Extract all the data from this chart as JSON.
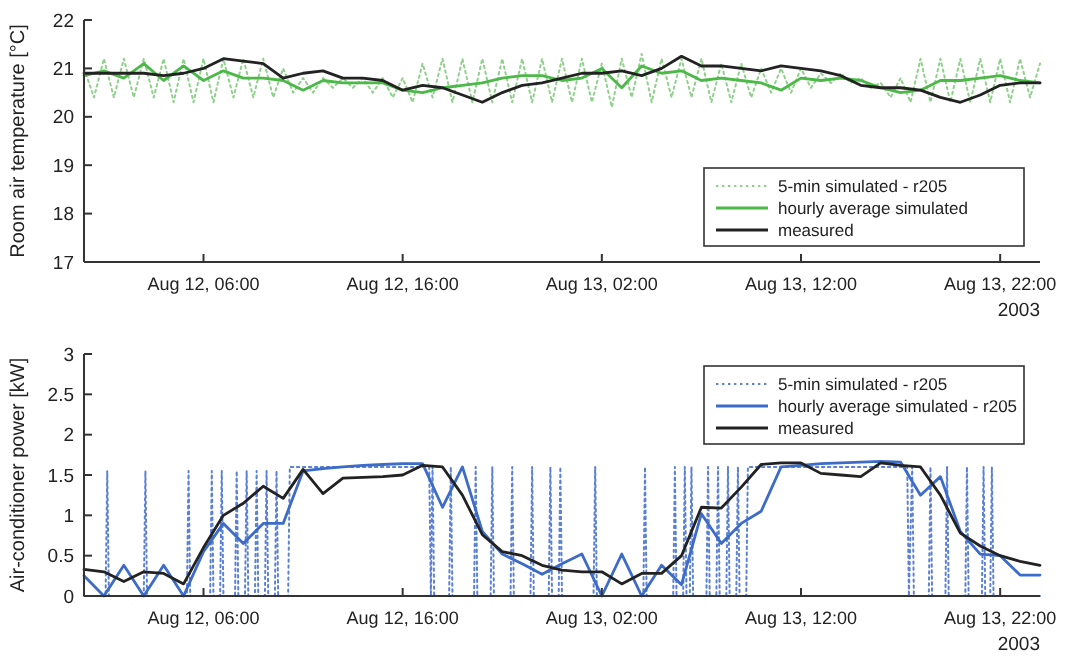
{
  "chart_data": [
    {
      "type": "line",
      "ylabel": "Room air temperature [°C]",
      "xlim": [
        "2003-08-12T00:00",
        "2003-08-14T00:00"
      ],
      "ylim": [
        17,
        22
      ],
      "yticks": [
        17,
        18,
        19,
        20,
        21,
        22
      ],
      "xticks": [
        {
          "value": "2003-08-12T06:00",
          "label": "Aug 12, 06:00"
        },
        {
          "value": "2003-08-12T16:00",
          "label": "Aug 12, 16:00"
        },
        {
          "value": "2003-08-13T02:00",
          "label": "Aug 13, 02:00"
        },
        {
          "value": "2003-08-13T12:00",
          "label": "Aug 13, 12:00"
        },
        {
          "value": "2003-08-13T22:00",
          "label": "Aug 13, 22:00"
        }
      ],
      "x": [
        "2003-08-12T00:00",
        "2003-08-12T01:00",
        "2003-08-12T02:00",
        "2003-08-12T03:00",
        "2003-08-12T04:00",
        "2003-08-12T05:00",
        "2003-08-12T06:00",
        "2003-08-12T07:00",
        "2003-08-12T08:00",
        "2003-08-12T09:00",
        "2003-08-12T10:00",
        "2003-08-12T11:00",
        "2003-08-12T12:00",
        "2003-08-12T13:00",
        "2003-08-12T14:00",
        "2003-08-12T15:00",
        "2003-08-12T16:00",
        "2003-08-12T17:00",
        "2003-08-12T18:00",
        "2003-08-12T19:00",
        "2003-08-12T20:00",
        "2003-08-12T21:00",
        "2003-08-12T22:00",
        "2003-08-12T23:00",
        "2003-08-13T00:00",
        "2003-08-13T01:00",
        "2003-08-13T02:00",
        "2003-08-13T03:00",
        "2003-08-13T04:00",
        "2003-08-13T05:00",
        "2003-08-13T06:00",
        "2003-08-13T07:00",
        "2003-08-13T08:00",
        "2003-08-13T09:00",
        "2003-08-13T10:00",
        "2003-08-13T11:00",
        "2003-08-13T12:00",
        "2003-08-13T13:00",
        "2003-08-13T14:00",
        "2003-08-13T15:00",
        "2003-08-13T16:00",
        "2003-08-13T17:00",
        "2003-08-13T18:00",
        "2003-08-13T19:00",
        "2003-08-13T20:00",
        "2003-08-13T21:00",
        "2003-08-13T22:00",
        "2003-08-13T23:00",
        "2003-08-14T00:00"
      ],
      "legend": "bottom right",
      "grid": false,
      "annotations": [
        "2003"
      ],
      "series": [
        {
          "name": "5-min simulated - r205",
          "color": "#8fd18a",
          "line_style": "dotted",
          "x": [
            "2003-08-12T00:00",
            "2003-08-12T00:30",
            "2003-08-12T01:00",
            "2003-08-12T01:30",
            "2003-08-12T02:00",
            "2003-08-12T02:30",
            "2003-08-12T03:00",
            "2003-08-12T03:30",
            "2003-08-12T04:00",
            "2003-08-12T04:30",
            "2003-08-12T05:00",
            "2003-08-12T05:30",
            "2003-08-12T06:00",
            "2003-08-12T06:30",
            "2003-08-12T07:00",
            "2003-08-12T07:30",
            "2003-08-12T08:00",
            "2003-08-12T08:30",
            "2003-08-12T09:00",
            "2003-08-12T09:30",
            "2003-08-12T10:00",
            "2003-08-12T10:30",
            "2003-08-12T11:00",
            "2003-08-12T11:30",
            "2003-08-12T12:00",
            "2003-08-12T12:30",
            "2003-08-12T13:00",
            "2003-08-12T13:30",
            "2003-08-12T14:00",
            "2003-08-12T14:30",
            "2003-08-12T15:00",
            "2003-08-12T15:30",
            "2003-08-12T16:00",
            "2003-08-12T16:30",
            "2003-08-12T17:00",
            "2003-08-12T17:30",
            "2003-08-12T18:00",
            "2003-08-12T18:30",
            "2003-08-12T19:00",
            "2003-08-12T19:30",
            "2003-08-12T20:00",
            "2003-08-12T20:30",
            "2003-08-12T21:00",
            "2003-08-12T21:30",
            "2003-08-12T22:00",
            "2003-08-12T22:30",
            "2003-08-12T23:00",
            "2003-08-12T23:30",
            "2003-08-13T00:00",
            "2003-08-13T00:30",
            "2003-08-13T01:00",
            "2003-08-13T01:30",
            "2003-08-13T02:00",
            "2003-08-13T02:30",
            "2003-08-13T03:00",
            "2003-08-13T03:30",
            "2003-08-13T04:00",
            "2003-08-13T04:30",
            "2003-08-13T05:00",
            "2003-08-13T05:30",
            "2003-08-13T06:00",
            "2003-08-13T06:30",
            "2003-08-13T07:00",
            "2003-08-13T07:30",
            "2003-08-13T08:00",
            "2003-08-13T08:30",
            "2003-08-13T09:00",
            "2003-08-13T09:30",
            "2003-08-13T10:00",
            "2003-08-13T10:30",
            "2003-08-13T11:00",
            "2003-08-13T11:30",
            "2003-08-13T12:00",
            "2003-08-13T12:30",
            "2003-08-13T13:00",
            "2003-08-13T13:30",
            "2003-08-13T14:00",
            "2003-08-13T14:30",
            "2003-08-13T15:00",
            "2003-08-13T15:30",
            "2003-08-13T16:00",
            "2003-08-13T16:30",
            "2003-08-13T17:00",
            "2003-08-13T17:30",
            "2003-08-13T18:00",
            "2003-08-13T18:30",
            "2003-08-13T19:00",
            "2003-08-13T19:30",
            "2003-08-13T20:00",
            "2003-08-13T20:30",
            "2003-08-13T21:00",
            "2003-08-13T21:30",
            "2003-08-13T22:00",
            "2003-08-13T22:30",
            "2003-08-13T23:00",
            "2003-08-13T23:30",
            "2003-08-14T00:00"
          ],
          "values": [
            21.0,
            20.4,
            21.2,
            20.4,
            21.2,
            20.4,
            21.2,
            20.4,
            21.2,
            20.3,
            21.2,
            20.3,
            21.2,
            20.3,
            21.2,
            20.4,
            21.2,
            20.4,
            21.2,
            20.4,
            21.0,
            20.5,
            20.8,
            20.5,
            20.8,
            20.6,
            20.8,
            20.6,
            20.8,
            20.5,
            20.8,
            20.4,
            20.8,
            20.3,
            21.1,
            20.4,
            21.2,
            20.3,
            21.2,
            20.3,
            21.2,
            20.3,
            21.2,
            20.3,
            21.2,
            20.3,
            21.2,
            20.3,
            21.2,
            20.3,
            21.2,
            20.3,
            21.1,
            20.2,
            21.2,
            20.4,
            21.3,
            20.3,
            21.2,
            20.4,
            21.2,
            20.4,
            21.2,
            20.3,
            21.1,
            20.3,
            21.1,
            20.4,
            21.0,
            20.5,
            21.0,
            20.5,
            21.0,
            20.6,
            20.9,
            20.7,
            20.9,
            20.7,
            20.8,
            20.6,
            20.7,
            20.4,
            20.8,
            20.3,
            21.2,
            20.3,
            21.2,
            20.3,
            21.2,
            20.3,
            21.2,
            20.3,
            21.2,
            20.3,
            21.2,
            20.4,
            21.1
          ]
        },
        {
          "name": "hourly average simulated",
          "color": "#4cb848",
          "line_style": "solid",
          "values": [
            20.85,
            20.95,
            20.8,
            21.1,
            20.75,
            21.05,
            20.75,
            20.95,
            20.8,
            20.8,
            20.75,
            20.55,
            20.75,
            20.7,
            20.7,
            20.7,
            20.55,
            20.5,
            20.6,
            20.65,
            20.7,
            20.8,
            20.85,
            20.85,
            20.75,
            20.8,
            21.0,
            20.6,
            21.05,
            20.9,
            20.95,
            20.75,
            20.8,
            20.75,
            20.7,
            20.55,
            20.8,
            20.75,
            20.8,
            20.75,
            20.6,
            20.5,
            20.55,
            20.75,
            20.75,
            20.8,
            20.85,
            20.75,
            20.7
          ]
        },
        {
          "name": "measured",
          "color": "#222222",
          "line_style": "solid",
          "values": [
            20.9,
            20.9,
            20.9,
            20.9,
            20.85,
            20.9,
            21.0,
            21.2,
            21.15,
            21.1,
            20.8,
            20.9,
            20.95,
            20.8,
            20.8,
            20.75,
            20.55,
            20.65,
            20.6,
            20.45,
            20.3,
            20.5,
            20.65,
            20.7,
            20.8,
            20.9,
            20.9,
            20.95,
            20.85,
            21.0,
            21.25,
            21.05,
            21.05,
            21.0,
            20.95,
            21.05,
            21.0,
            20.95,
            20.85,
            20.65,
            20.6,
            20.6,
            20.55,
            20.4,
            20.3,
            20.45,
            20.65,
            20.7,
            20.7
          ]
        }
      ]
    },
    {
      "type": "line",
      "ylabel": "Air-conditioner power [kW]",
      "xlim": [
        "2003-08-12T00:00",
        "2003-08-14T00:00"
      ],
      "ylim": [
        0,
        3
      ],
      "yticks": [
        0,
        0.5,
        1,
        1.5,
        2,
        2.5,
        3
      ],
      "xticks": [
        {
          "value": "2003-08-12T06:00",
          "label": "Aug 12, 06:00"
        },
        {
          "value": "2003-08-12T16:00",
          "label": "Aug 12, 16:00"
        },
        {
          "value": "2003-08-13T02:00",
          "label": "Aug 13, 02:00"
        },
        {
          "value": "2003-08-13T12:00",
          "label": "Aug 13, 12:00"
        },
        {
          "value": "2003-08-13T22:00",
          "label": "Aug 13, 22:00"
        }
      ],
      "x": [
        "2003-08-12T00:00",
        "2003-08-12T01:00",
        "2003-08-12T02:00",
        "2003-08-12T03:00",
        "2003-08-12T04:00",
        "2003-08-12T05:00",
        "2003-08-12T06:00",
        "2003-08-12T07:00",
        "2003-08-12T08:00",
        "2003-08-12T09:00",
        "2003-08-12T10:00",
        "2003-08-12T11:00",
        "2003-08-12T12:00",
        "2003-08-12T13:00",
        "2003-08-12T14:00",
        "2003-08-12T15:00",
        "2003-08-12T16:00",
        "2003-08-12T17:00",
        "2003-08-12T18:00",
        "2003-08-12T19:00",
        "2003-08-12T20:00",
        "2003-08-12T21:00",
        "2003-08-12T22:00",
        "2003-08-12T23:00",
        "2003-08-13T00:00",
        "2003-08-13T01:00",
        "2003-08-13T02:00",
        "2003-08-13T03:00",
        "2003-08-13T04:00",
        "2003-08-13T05:00",
        "2003-08-13T06:00",
        "2003-08-13T07:00",
        "2003-08-13T08:00",
        "2003-08-13T09:00",
        "2003-08-13T10:00",
        "2003-08-13T11:00",
        "2003-08-13T12:00",
        "2003-08-13T13:00",
        "2003-08-13T14:00",
        "2003-08-13T15:00",
        "2003-08-13T16:00",
        "2003-08-13T17:00",
        "2003-08-13T18:00",
        "2003-08-13T19:00",
        "2003-08-13T20:00",
        "2003-08-13T21:00",
        "2003-08-13T22:00",
        "2003-08-13T23:00",
        "2003-08-14T00:00"
      ],
      "legend": "top right",
      "grid": false,
      "annotations": [
        "2003"
      ],
      "series": [
        {
          "name": "5-min simulated - r205",
          "color": "#5b80d4",
          "line_style": "dotted",
          "x": [
            "2003-08-12T00:00",
            "2003-08-12T01:05",
            "2003-08-12T01:10",
            "2003-08-12T01:15",
            "2003-08-12T03:00",
            "2003-08-12T03:05",
            "2003-08-12T03:10",
            "2003-08-12T05:10",
            "2003-08-12T05:15",
            "2003-08-12T05:20",
            "2003-08-12T06:20",
            "2003-08-12T06:25",
            "2003-08-12T06:30",
            "2003-08-12T06:50",
            "2003-08-12T06:55",
            "2003-08-12T07:00",
            "2003-08-12T07:35",
            "2003-08-12T07:40",
            "2003-08-12T07:45",
            "2003-08-12T08:05",
            "2003-08-12T08:10",
            "2003-08-12T08:15",
            "2003-08-12T08:35",
            "2003-08-12T08:40",
            "2003-08-12T08:45",
            "2003-08-12T09:05",
            "2003-08-12T09:10",
            "2003-08-12T09:15",
            "2003-08-12T09:35",
            "2003-08-12T09:40",
            "2003-08-12T09:45",
            "2003-08-12T10:15",
            "2003-08-12T10:20",
            "2003-08-12T17:20",
            "2003-08-12T17:25",
            "2003-08-12T17:30",
            "2003-08-12T17:35",
            "2003-08-12T18:20",
            "2003-08-12T18:25",
            "2003-08-12T18:30",
            "2003-08-12T19:35",
            "2003-08-12T19:40",
            "2003-08-12T19:45",
            "2003-08-12T20:25",
            "2003-08-12T20:30",
            "2003-08-12T20:35",
            "2003-08-12T21:25",
            "2003-08-12T21:30",
            "2003-08-12T21:35",
            "2003-08-12T22:25",
            "2003-08-12T22:30",
            "2003-08-12T22:35",
            "2003-08-12T23:20",
            "2003-08-12T23:25",
            "2003-08-12T23:30",
            "2003-08-12T23:50",
            "2003-08-12T23:55",
            "2003-08-13T00:00",
            "2003-08-13T01:35",
            "2003-08-13T01:40",
            "2003-08-13T01:45",
            "2003-08-13T04:05",
            "2003-08-13T04:10",
            "2003-08-13T04:15",
            "2003-08-13T05:35",
            "2003-08-13T05:40",
            "2003-08-13T05:45",
            "2003-08-13T06:05",
            "2003-08-13T06:10",
            "2003-08-13T06:15",
            "2003-08-13T06:25",
            "2003-08-13T06:30",
            "2003-08-13T06:35",
            "2003-08-13T07:15",
            "2003-08-13T07:20",
            "2003-08-13T07:25",
            "2003-08-13T07:45",
            "2003-08-13T07:50",
            "2003-08-13T07:55",
            "2003-08-13T08:15",
            "2003-08-13T08:20",
            "2003-08-13T08:25",
            "2003-08-13T08:45",
            "2003-08-13T08:50",
            "2003-08-13T08:55",
            "2003-08-13T09:15",
            "2003-08-13T09:20",
            "2003-08-13T17:20",
            "2003-08-13T17:25",
            "2003-08-13T17:35",
            "2003-08-13T17:40",
            "2003-08-13T18:25",
            "2003-08-13T18:30",
            "2003-08-13T18:35",
            "2003-08-13T19:15",
            "2003-08-13T19:20",
            "2003-08-13T19:25",
            "2003-08-13T20:15",
            "2003-08-13T20:20",
            "2003-08-13T20:25",
            "2003-08-13T21:05",
            "2003-08-13T21:10",
            "2003-08-13T21:15",
            "2003-08-13T21:30",
            "2003-08-13T21:35",
            "2003-08-13T21:40",
            "2003-08-14T00:00"
          ],
          "values": [
            0,
            0,
            1.55,
            0,
            0,
            1.55,
            0,
            0,
            1.55,
            0,
            0,
            1.55,
            0,
            0,
            1.55,
            0,
            0,
            1.55,
            0,
            0,
            1.55,
            0,
            0,
            1.55,
            0,
            0,
            1.55,
            0,
            0,
            1.55,
            0,
            0,
            1.6,
            1.6,
            0,
            1.6,
            0,
            0,
            1.6,
            0,
            0,
            1.6,
            0,
            0,
            1.6,
            0,
            0,
            1.6,
            0,
            0,
            1.6,
            0,
            0,
            1.6,
            0,
            0,
            1.6,
            0,
            0,
            1.6,
            0,
            0,
            1.6,
            0,
            0,
            1.6,
            0,
            0,
            1.6,
            0,
            0,
            1.6,
            0,
            0,
            1.6,
            0,
            0,
            1.6,
            0,
            0,
            1.6,
            0,
            0,
            1.6,
            0,
            0,
            1.6,
            1.6,
            0,
            1.6,
            0,
            0,
            1.6,
            0,
            0,
            1.6,
            0,
            0,
            1.6,
            0,
            0,
            1.6,
            0,
            0,
            1.6,
            0,
            0
          ]
        },
        {
          "name": "hourly average simulated - r205",
          "color": "#3c6cc8",
          "line_style": "solid",
          "values": [
            0.25,
            0,
            0.38,
            0,
            0.38,
            0,
            0.55,
            0.9,
            0.65,
            0.9,
            0.9,
            1.55,
            1.58,
            1.6,
            1.62,
            1.63,
            1.64,
            1.64,
            1.1,
            1.6,
            0.8,
            0.52,
            0.4,
            0.27,
            0.4,
            0.52,
            0,
            0.52,
            0,
            0.38,
            0.14,
            1.02,
            0.65,
            0.9,
            1.05,
            1.6,
            1.62,
            1.64,
            1.65,
            1.66,
            1.67,
            1.66,
            1.25,
            1.48,
            0.8,
            0.52,
            0.5,
            0.26,
            0.26
          ]
        },
        {
          "name": "measured",
          "color": "#222222",
          "line_style": "solid",
          "values": [
            0.33,
            0.3,
            0.18,
            0.3,
            0.28,
            0.15,
            0.6,
            1.0,
            1.15,
            1.36,
            1.21,
            1.57,
            1.27,
            1.46,
            1.47,
            1.48,
            1.5,
            1.62,
            1.6,
            1.25,
            0.76,
            0.55,
            0.5,
            0.38,
            0.32,
            0.3,
            0.3,
            0.15,
            0.28,
            0.28,
            0.5,
            1.1,
            1.09,
            1.35,
            1.63,
            1.65,
            1.65,
            1.52,
            1.5,
            1.48,
            1.65,
            1.62,
            1.6,
            1.25,
            0.78,
            0.62,
            0.5,
            0.43,
            0.38
          ]
        }
      ]
    }
  ]
}
